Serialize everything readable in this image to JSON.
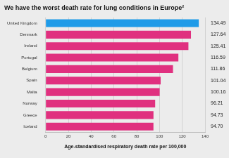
{
  "chart_data": {
    "type": "bar",
    "orientation": "horizontal",
    "title": "We have the worst death rate for lung conditions in Europe²",
    "xlabel": "Age-standardised respiratory death rate per 100,000",
    "categories": [
      "United Kingdom",
      "Denmark",
      "Ireland",
      "Portugal",
      "Belgium",
      "Spain",
      "Malta",
      "Norway",
      "Greece",
      "Iceland"
    ],
    "values": [
      134.49,
      127.64,
      125.41,
      116.59,
      111.86,
      101.04,
      100.16,
      96.21,
      94.73,
      94.7
    ],
    "value_labels": [
      "134.49",
      "127.64",
      "125.41",
      "116.59",
      "111.86",
      "101.04",
      "100.16",
      "96.21",
      "94.73",
      "94.70"
    ],
    "data_labels": true,
    "colors": [
      "#1f9be8",
      "#e0307f",
      "#e0307f",
      "#e0307f",
      "#e0307f",
      "#e0307f",
      "#e0307f",
      "#e0307f",
      "#e0307f",
      "#e0307f"
    ],
    "xlim": [
      0,
      140
    ],
    "xticks": [
      0,
      20,
      40,
      60,
      80,
      100,
      120,
      140
    ],
    "grid": true
  }
}
